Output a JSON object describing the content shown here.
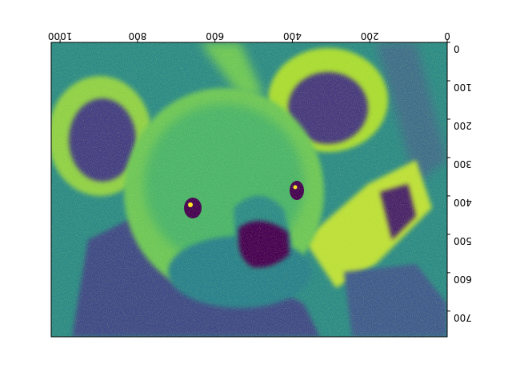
{
  "chart_data": {
    "type": "heatmap",
    "title": "",
    "xlabel": "",
    "ylabel": "",
    "colormap": "viridis",
    "xaxis_position": "top",
    "yaxis_position": "right",
    "x_inverted": true,
    "y_inverted": false,
    "xlim": [
      1023,
      0
    ],
    "ylim": [
      0,
      767
    ],
    "xticks": [
      0,
      200,
      400,
      600,
      800,
      1000
    ],
    "xtick_labels": [
      "0",
      "200",
      "400",
      "600",
      "800",
      "1000"
    ],
    "yticks": [
      0,
      100,
      200,
      300,
      400,
      500,
      600,
      700
    ],
    "ytick_labels": [
      "0",
      "100",
      "200",
      "300",
      "400",
      "500",
      "600",
      "700"
    ],
    "grid": false
  },
  "colors": {
    "viridis_dark": "#440154",
    "viridis_blue": "#3b528b",
    "viridis_teal": "#21918c",
    "viridis_green": "#5ec962",
    "viridis_yellow": "#fde725"
  },
  "image_description_icon": "koala-photo-heatmap-icon"
}
